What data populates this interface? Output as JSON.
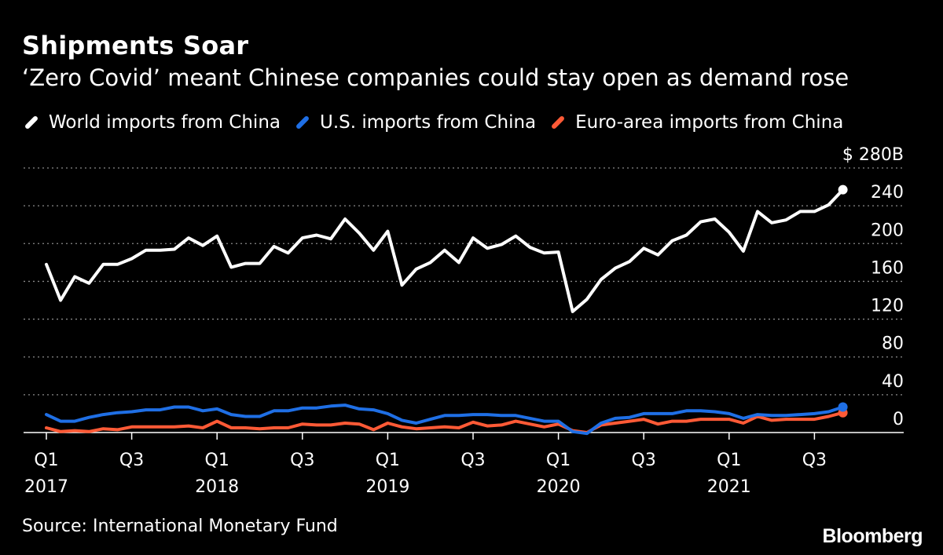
{
  "chart_data": {
    "type": "line",
    "title": "Shipments Soar",
    "subtitle": "‘Zero Covid’ meant Chinese companies could stay open as demand rose",
    "unit_prefix": "$ ",
    "unit_suffix": "B",
    "ylim": [
      0,
      280
    ],
    "yticks": [
      0,
      40,
      80,
      120,
      160,
      200,
      240,
      280
    ],
    "ytick_labels": [
      "0",
      "40",
      "80",
      "120",
      "160",
      "200",
      "240",
      "280B"
    ],
    "x_start": "2017-01",
    "x_tick_months": [
      0,
      6,
      12,
      18,
      24,
      30,
      36,
      42,
      48,
      54
    ],
    "x_tick_labels": [
      {
        "quarter": "Q1",
        "year": "2017"
      },
      {
        "quarter": "Q3",
        "year": ""
      },
      {
        "quarter": "Q1",
        "year": "2018"
      },
      {
        "quarter": "Q3",
        "year": ""
      },
      {
        "quarter": "Q1",
        "year": "2019"
      },
      {
        "quarter": "Q3",
        "year": ""
      },
      {
        "quarter": "Q1",
        "year": "2020"
      },
      {
        "quarter": "Q3",
        "year": ""
      },
      {
        "quarter": "Q1",
        "year": "2021"
      },
      {
        "quarter": "Q3",
        "year": ""
      }
    ],
    "series": [
      {
        "name": "World imports from China",
        "color": "#ffffff",
        "values": [
          178,
          140,
          165,
          158,
          178,
          178,
          184,
          193,
          193,
          194,
          206,
          198,
          208,
          175,
          179,
          179,
          197,
          190,
          206,
          209,
          205,
          226,
          211,
          193,
          213,
          156,
          173,
          180,
          193,
          180,
          206,
          195,
          199,
          208,
          196,
          190,
          191,
          128,
          141,
          162,
          174,
          181,
          195,
          188,
          203,
          209,
          223,
          226,
          212,
          192,
          234,
          222,
          225,
          234,
          234,
          241,
          257
        ]
      },
      {
        "name": "U.S. imports from China",
        "color": "#1f6fe5",
        "values": [
          19,
          12,
          12,
          16,
          19,
          21,
          22,
          24,
          24,
          27,
          27,
          23,
          25,
          19,
          17,
          17,
          23,
          23,
          26,
          26,
          28,
          29,
          25,
          24,
          20,
          13,
          10,
          14,
          18,
          18,
          19,
          19,
          18,
          18,
          15,
          12,
          12,
          1,
          -1,
          10,
          15,
          16,
          20,
          20,
          20,
          23,
          23,
          22,
          20,
          15,
          19,
          18,
          18,
          19,
          20,
          22,
          27
        ]
      },
      {
        "name": "Euro-area imports from China",
        "color": "#ff5a36",
        "values": [
          5,
          1,
          2,
          1,
          4,
          3,
          6,
          6,
          6,
          6,
          7,
          5,
          12,
          5,
          5,
          4,
          5,
          5,
          9,
          8,
          8,
          10,
          9,
          3,
          10,
          6,
          4,
          5,
          6,
          5,
          11,
          7,
          8,
          12,
          9,
          6,
          9,
          2,
          0,
          8,
          10,
          12,
          14,
          9,
          12,
          12,
          14,
          14,
          14,
          10,
          17,
          13,
          14,
          14,
          14,
          17,
          21
        ]
      }
    ]
  },
  "source": "Source: International Monetary Fund",
  "brand": "Bloomberg"
}
